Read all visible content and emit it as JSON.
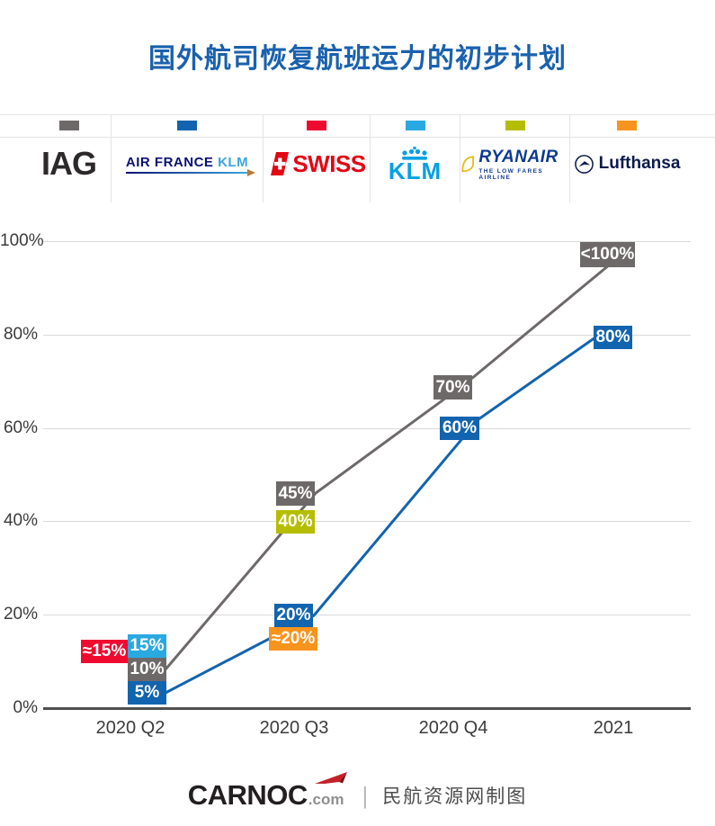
{
  "title": "国外航司恢复航班运力的初步计划",
  "title_color": "#1a61ae",
  "legend": {
    "items": [
      {
        "name": "IAG",
        "color": "#6e6969",
        "logo_text": "IAG"
      },
      {
        "name": "Air France KLM",
        "color": "#1264ae",
        "logo_text_primary": "AIR FRANCE",
        "logo_text_secondary": "KLM"
      },
      {
        "name": "SWISS",
        "color": "#ef0a30",
        "logo_text": "SWISS"
      },
      {
        "name": "KLM",
        "color": "#29a9e2",
        "logo_text": "KLM"
      },
      {
        "name": "Ryanair",
        "color": "#b5bd00",
        "logo_text": "RYANAIR",
        "logo_subtext": "THE LOW FARES AIRLINE"
      },
      {
        "name": "Lufthansa",
        "color": "#f7941d",
        "logo_text": "Lufthansa"
      }
    ]
  },
  "chart_data": {
    "type": "line",
    "categories": [
      "2020 Q2",
      "2020 Q3",
      "2020 Q4",
      "2021"
    ],
    "series": [
      {
        "name": "IAG",
        "color": "#6e6969",
        "line": true,
        "values": [
          10,
          45,
          70,
          97
        ],
        "labels": [
          "10%",
          "45%",
          "70%",
          "<100%"
        ]
      },
      {
        "name": "Air France KLM",
        "color": "#1264ae",
        "line": true,
        "values": [
          5,
          20,
          60,
          80
        ],
        "labels": [
          "5%",
          "20%",
          "60%",
          "80%"
        ]
      },
      {
        "name": "SWISS",
        "color": "#ef0a30",
        "line": false,
        "values": [
          15,
          null,
          null,
          null
        ],
        "labels": [
          "≈15%",
          null,
          null,
          null
        ]
      },
      {
        "name": "KLM",
        "color": "#29a9e2",
        "line": false,
        "values": [
          15,
          null,
          null,
          null
        ],
        "labels": [
          "15%",
          null,
          null,
          null
        ]
      },
      {
        "name": "Ryanair",
        "color": "#b5bd00",
        "line": false,
        "values": [
          null,
          40,
          null,
          null
        ],
        "labels": [
          null,
          "40%",
          null,
          null
        ]
      },
      {
        "name": "Lufthansa",
        "color": "#f7941d",
        "line": false,
        "values": [
          null,
          20,
          null,
          null
        ],
        "labels": [
          null,
          "≈20%",
          null,
          null
        ]
      }
    ],
    "yticks": [
      {
        "value": 0,
        "label": "0%"
      },
      {
        "value": 20,
        "label": "20%"
      },
      {
        "value": 40,
        "label": "40%"
      },
      {
        "value": 60,
        "label": "60%"
      },
      {
        "value": 80,
        "label": "80%"
      },
      {
        "value": 100,
        "label": "100%"
      }
    ],
    "ylim": [
      0,
      100
    ],
    "grid": true,
    "legend_position": "top"
  },
  "footer": {
    "logo_text": "CARNOC",
    "logo_suffix": ".com",
    "separator": "|",
    "credit": "民航资源网制图"
  }
}
